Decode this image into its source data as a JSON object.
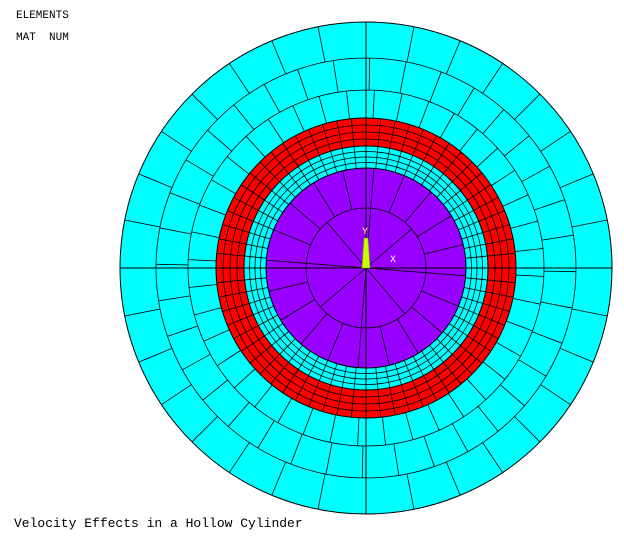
{
  "header": {
    "lines": [
      "ELEMENTS",
      "MAT  NUM"
    ]
  },
  "triad": {
    "y": "Y",
    "x": "X"
  },
  "caption": "Velocity Effects in a Hollow Cylinder"
}
